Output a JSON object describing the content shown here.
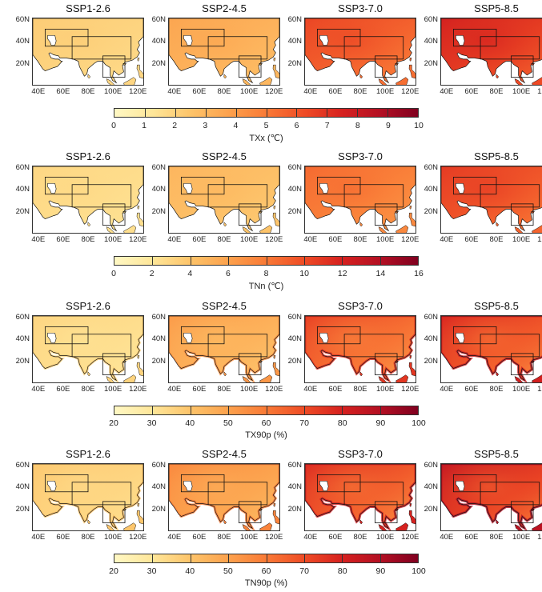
{
  "chart_data": [
    {
      "type": "heatmap",
      "row_id": "txx",
      "panels": [
        {
          "title": "SSP1-2.6",
          "mean_change": 1.9
        },
        {
          "title": "SSP2-4.5",
          "mean_change": 3.1
        },
        {
          "title": "SSP3-7.0",
          "mean_change": 5.6
        },
        {
          "title": "SSP5-8.5",
          "mean_change": 6.6
        }
      ],
      "y_ticks": [
        "60N",
        "40N",
        "20N"
      ],
      "x_ticks": [
        "40E",
        "60E",
        "80E",
        "100E",
        "120E"
      ],
      "colorbar": {
        "label": "TXx (℃)",
        "range": [
          0,
          10
        ],
        "ticks": [
          "0",
          "1",
          "2",
          "3",
          "4",
          "5",
          "6",
          "7",
          "8",
          "9",
          "10"
        ]
      }
    },
    {
      "type": "heatmap",
      "row_id": "tnn",
      "panels": [
        {
          "title": "SSP1-2.6",
          "mean_change": 2.5
        },
        {
          "title": "SSP2-4.5",
          "mean_change": 4.2
        },
        {
          "title": "SSP3-7.0",
          "mean_change": 7.6
        },
        {
          "title": "SSP5-8.5",
          "mean_change": 9.4
        }
      ],
      "y_ticks": [
        "60N",
        "40N",
        "20N"
      ],
      "x_ticks": [
        "40E",
        "60E",
        "80E",
        "100E",
        "120E"
      ],
      "colorbar": {
        "label": "TNn (℃)",
        "range": [
          0,
          16
        ],
        "ticks": [
          "0",
          "2",
          "4",
          "6",
          "8",
          "10",
          "12",
          "14",
          "16"
        ]
      }
    },
    {
      "type": "heatmap",
      "row_id": "tx90p",
      "panels": [
        {
          "title": "SSP1-2.6",
          "mean_change": 32
        },
        {
          "title": "SSP2-4.5",
          "mean_change": 45
        },
        {
          "title": "SSP3-7.0",
          "mean_change": 62
        },
        {
          "title": "SSP5-8.5",
          "mean_change": 67
        }
      ],
      "y_ticks": [
        "60N",
        "40N",
        "20N"
      ],
      "x_ticks": [
        "40E",
        "60E",
        "80E",
        "100E",
        "120E"
      ],
      "colorbar": {
        "label": "TX90p (%)",
        "range": [
          20,
          100
        ],
        "ticks": [
          "20",
          "30",
          "40",
          "50",
          "60",
          "70",
          "80",
          "90",
          "100"
        ]
      }
    },
    {
      "type": "heatmap",
      "row_id": "tn90p",
      "panels": [
        {
          "title": "SSP1-2.6",
          "mean_change": 35
        },
        {
          "title": "SSP2-4.5",
          "mean_change": 49
        },
        {
          "title": "SSP3-7.0",
          "mean_change": 66
        },
        {
          "title": "SSP5-8.5",
          "mean_change": 72
        }
      ],
      "y_ticks": [
        "60N",
        "40N",
        "20N"
      ],
      "x_ticks": [
        "40E",
        "60E",
        "80E",
        "100E",
        "120E"
      ],
      "colorbar": {
        "label": "TN90p (%)",
        "range": [
          20,
          100
        ],
        "ticks": [
          "20",
          "30",
          "40",
          "50",
          "60",
          "70",
          "80",
          "90",
          "100"
        ]
      }
    }
  ],
  "colors": {
    "scale": [
      "#fff8c4",
      "#fee597",
      "#fdc46a",
      "#fca04c",
      "#f97a36",
      "#ee4a25",
      "#d6211f",
      "#b20f23",
      "#80001f"
    ],
    "ocean": "#ffffff",
    "frame": "#333333"
  }
}
